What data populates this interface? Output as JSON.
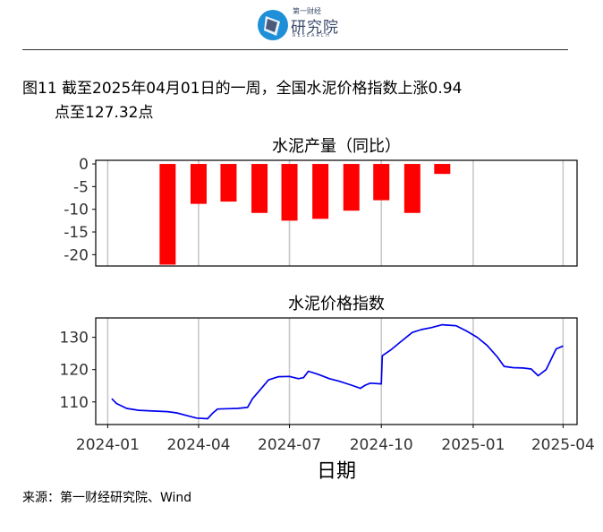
{
  "header": {
    "logo_small": "第一财经",
    "logo_main": "研究院",
    "logo_en": "RESEARCH"
  },
  "figure": {
    "title_line1": "图11  截至2025年04月01日的一周，全国水泥价格指数上涨0.94",
    "title_line2": "点至127.32点",
    "source": "来源：第一财经研究院、Wind"
  },
  "colors": {
    "bar": "#ff0000",
    "line": "#0000ee",
    "grid": "#c8c8c8"
  },
  "chart_data": [
    {
      "type": "bar",
      "title": "水泥产量（同比）",
      "x": [
        "2024-03-01",
        "2024-04-01",
        "2024-05-01",
        "2024-06-01",
        "2024-07-01",
        "2024-08-01",
        "2024-09-01",
        "2024-10-01",
        "2024-11-01",
        "2024-12-01"
      ],
      "values": [
        -22.2,
        -8.8,
        -8.3,
        -10.8,
        -12.5,
        -12.1,
        -10.3,
        -8.0,
        -10.8,
        -2.2
      ],
      "ylim": [
        -22.5,
        0.8
      ],
      "yticks": [
        0,
        -5,
        -10,
        -15,
        -20
      ],
      "xlim": [
        "2023-12-20",
        "2025-04-15"
      ],
      "grid": true
    },
    {
      "type": "line",
      "title": "水泥价格指数",
      "xlabel": "日期",
      "ylim": [
        103,
        136
      ],
      "yticks": [
        110,
        120,
        130
      ],
      "xlim": [
        "2023-12-20",
        "2025-04-15"
      ],
      "xticks": [
        "2024-01",
        "2024-04",
        "2024-07",
        "2024-10",
        "2025-01",
        "2025-04"
      ],
      "grid": true,
      "x": [
        "2024-01-05",
        "2024-01-10",
        "2024-01-20",
        "2024-02-01",
        "2024-02-15",
        "2024-03-01",
        "2024-03-10",
        "2024-03-20",
        "2024-03-30",
        "2024-04-10",
        "2024-04-15",
        "2024-04-20",
        "2024-05-01",
        "2024-05-10",
        "2024-05-20",
        "2024-05-25",
        "2024-06-01",
        "2024-06-10",
        "2024-06-20",
        "2024-07-01",
        "2024-07-10",
        "2024-07-15",
        "2024-07-20",
        "2024-07-30",
        "2024-08-10",
        "2024-08-20",
        "2024-09-01",
        "2024-09-10",
        "2024-09-15",
        "2024-09-20",
        "2024-10-01",
        "2024-10-02",
        "2024-10-10",
        "2024-10-20",
        "2024-11-01",
        "2024-11-10",
        "2024-11-20",
        "2024-12-01",
        "2024-12-15",
        "2024-12-25",
        "2025-01-05",
        "2025-01-15",
        "2025-01-25",
        "2025-02-01",
        "2025-02-10",
        "2025-02-20",
        "2025-02-28",
        "2025-03-07",
        "2025-03-15",
        "2025-03-25",
        "2025-04-01"
      ],
      "values": [
        111.0,
        109.5,
        108.0,
        107.4,
        107.2,
        107.0,
        106.6,
        105.8,
        105.0,
        104.8,
        106.5,
        107.8,
        107.9,
        108.0,
        108.3,
        111.0,
        113.5,
        116.8,
        117.8,
        117.9,
        117.2,
        117.5,
        119.5,
        118.5,
        117.2,
        116.4,
        115.2,
        114.2,
        115.2,
        115.8,
        115.6,
        124.3,
        126.0,
        128.5,
        131.5,
        132.4,
        133.0,
        133.9,
        133.6,
        132.0,
        130.0,
        127.5,
        124.0,
        121.0,
        120.6,
        120.5,
        120.2,
        118.1,
        120.0,
        126.4,
        127.32
      ]
    }
  ]
}
